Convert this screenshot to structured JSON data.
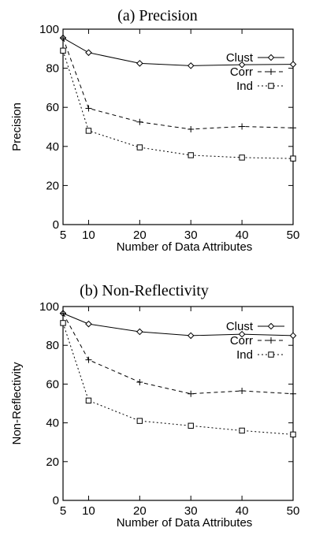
{
  "chart_data": [
    {
      "type": "line",
      "title": "(a) Precision",
      "xlabel": "Number of Data Attributes",
      "ylabel": "Precision",
      "x": [
        5,
        10,
        20,
        30,
        40,
        50
      ],
      "xticks": [
        5,
        10,
        20,
        30,
        40,
        50
      ],
      "yticks": [
        0,
        20,
        40,
        60,
        80,
        100
      ],
      "xlim": [
        5,
        50
      ],
      "ylim": [
        0,
        100
      ],
      "grid": false,
      "legend_position": "top-right",
      "series": [
        {
          "name": "Clust",
          "values": [
            95.5,
            88,
            82.5,
            81.3,
            81.8,
            82
          ],
          "marker": "diamond",
          "dash": "solid"
        },
        {
          "name": "Corr",
          "values": [
            95.5,
            59.5,
            52.5,
            48.8,
            50.2,
            49.5
          ],
          "marker": "plus",
          "dash": "dashed"
        },
        {
          "name": "Ind",
          "values": [
            89,
            48,
            39.5,
            35.5,
            34.3,
            33.8
          ],
          "marker": "square",
          "dash": "dotted"
        }
      ]
    },
    {
      "type": "line",
      "title": "(b) Non-Reflectivity",
      "xlabel": "Number of Data Attributes",
      "ylabel": "Non-Reflectivity",
      "x": [
        5,
        10,
        20,
        30,
        40,
        50
      ],
      "xticks": [
        5,
        10,
        20,
        30,
        40,
        50
      ],
      "yticks": [
        0,
        20,
        40,
        60,
        80,
        100
      ],
      "xlim": [
        5,
        50
      ],
      "ylim": [
        0,
        100
      ],
      "grid": false,
      "legend_position": "top-right",
      "series": [
        {
          "name": "Clust",
          "values": [
            96.5,
            91,
            87,
            85,
            85.7,
            85
          ],
          "marker": "diamond",
          "dash": "solid"
        },
        {
          "name": "Corr",
          "values": [
            96.5,
            72.5,
            61,
            55,
            56.5,
            55
          ],
          "marker": "plus",
          "dash": "dashed"
        },
        {
          "name": "Ind",
          "values": [
            91.5,
            51.5,
            41,
            38.5,
            36,
            34
          ],
          "marker": "square",
          "dash": "dotted"
        }
      ]
    }
  ]
}
